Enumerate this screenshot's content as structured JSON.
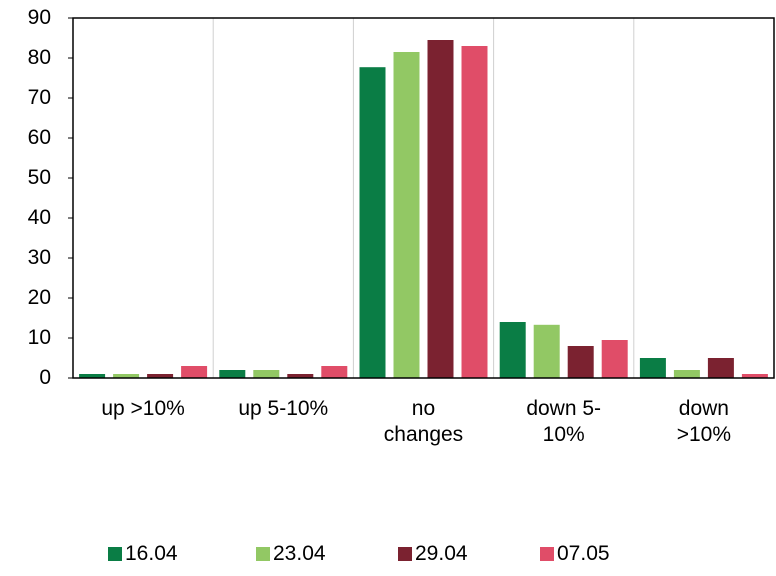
{
  "chart_data": {
    "type": "bar",
    "categories": [
      "up >10%",
      "up 5-10%",
      "no\nchanges",
      "down 5-\n10%",
      "down\n>10%"
    ],
    "series": [
      {
        "name": "16.04",
        "color": "#0a7d45",
        "values": [
          1,
          2,
          77.7,
          14,
          5
        ]
      },
      {
        "name": "23.04",
        "color": "#92c864",
        "values": [
          1,
          2,
          81.5,
          13.3,
          2
        ]
      },
      {
        "name": "29.04",
        "color": "#7b2230",
        "values": [
          1,
          1,
          84.5,
          8,
          5
        ]
      },
      {
        "name": "07.05",
        "color": "#e04d68",
        "values": [
          3,
          3,
          83,
          9.5,
          1
        ]
      }
    ],
    "ylim": [
      0,
      90
    ],
    "yticks": [
      0,
      10,
      20,
      30,
      40,
      50,
      60,
      70,
      80,
      90
    ],
    "grid": "vertical",
    "legend": "bottom"
  }
}
